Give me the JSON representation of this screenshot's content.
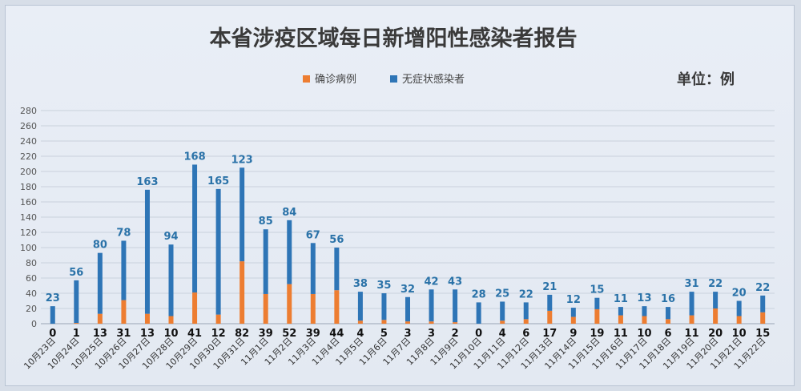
{
  "chart_data": {
    "type": "bar",
    "stacked": true,
    "title": "本省涉疫区域每日新增阳性感染者报告",
    "unit_label": "单位：例",
    "categories": [
      "10月23日",
      "10月24日",
      "10月25日",
      "10月26日",
      "10月27日",
      "10月28日",
      "10月29日",
      "10月30日",
      "10月31日",
      "11月1日",
      "11月2日",
      "11月3日",
      "11月4日",
      "11月5日",
      "11月6日",
      "11月7日",
      "11月8日",
      "11月9日",
      "11月10日",
      "11月11日",
      "11月12日",
      "11月13日",
      "11月14日",
      "11月15日",
      "11月16日",
      "11月17日",
      "11月18日",
      "11月19日",
      "11月20日",
      "11月21日",
      "11月22日"
    ],
    "series": [
      {
        "name": "确诊病例",
        "color": "#ed7d31",
        "values": [
          0,
          1,
          13,
          31,
          13,
          10,
          41,
          12,
          82,
          39,
          52,
          39,
          44,
          4,
          5,
          3,
          3,
          2,
          0,
          4,
          6,
          17,
          9,
          19,
          11,
          10,
          6,
          11,
          20,
          10,
          15
        ]
      },
      {
        "name": "无症状感染者",
        "color": "#2e75b6",
        "values": [
          23,
          56,
          80,
          78,
          163,
          94,
          168,
          165,
          123,
          85,
          84,
          67,
          56,
          38,
          35,
          32,
          42,
          43,
          28,
          25,
          22,
          21,
          12,
          15,
          11,
          13,
          16,
          31,
          22,
          20,
          22
        ]
      }
    ],
    "ylim": [
      0,
      280
    ],
    "yticks": [
      0,
      20,
      40,
      60,
      80,
      100,
      120,
      140,
      160,
      180,
      200,
      220,
      240,
      260,
      280
    ],
    "xlabel": "",
    "ylabel": "",
    "grid": true,
    "legend_position": "top"
  }
}
